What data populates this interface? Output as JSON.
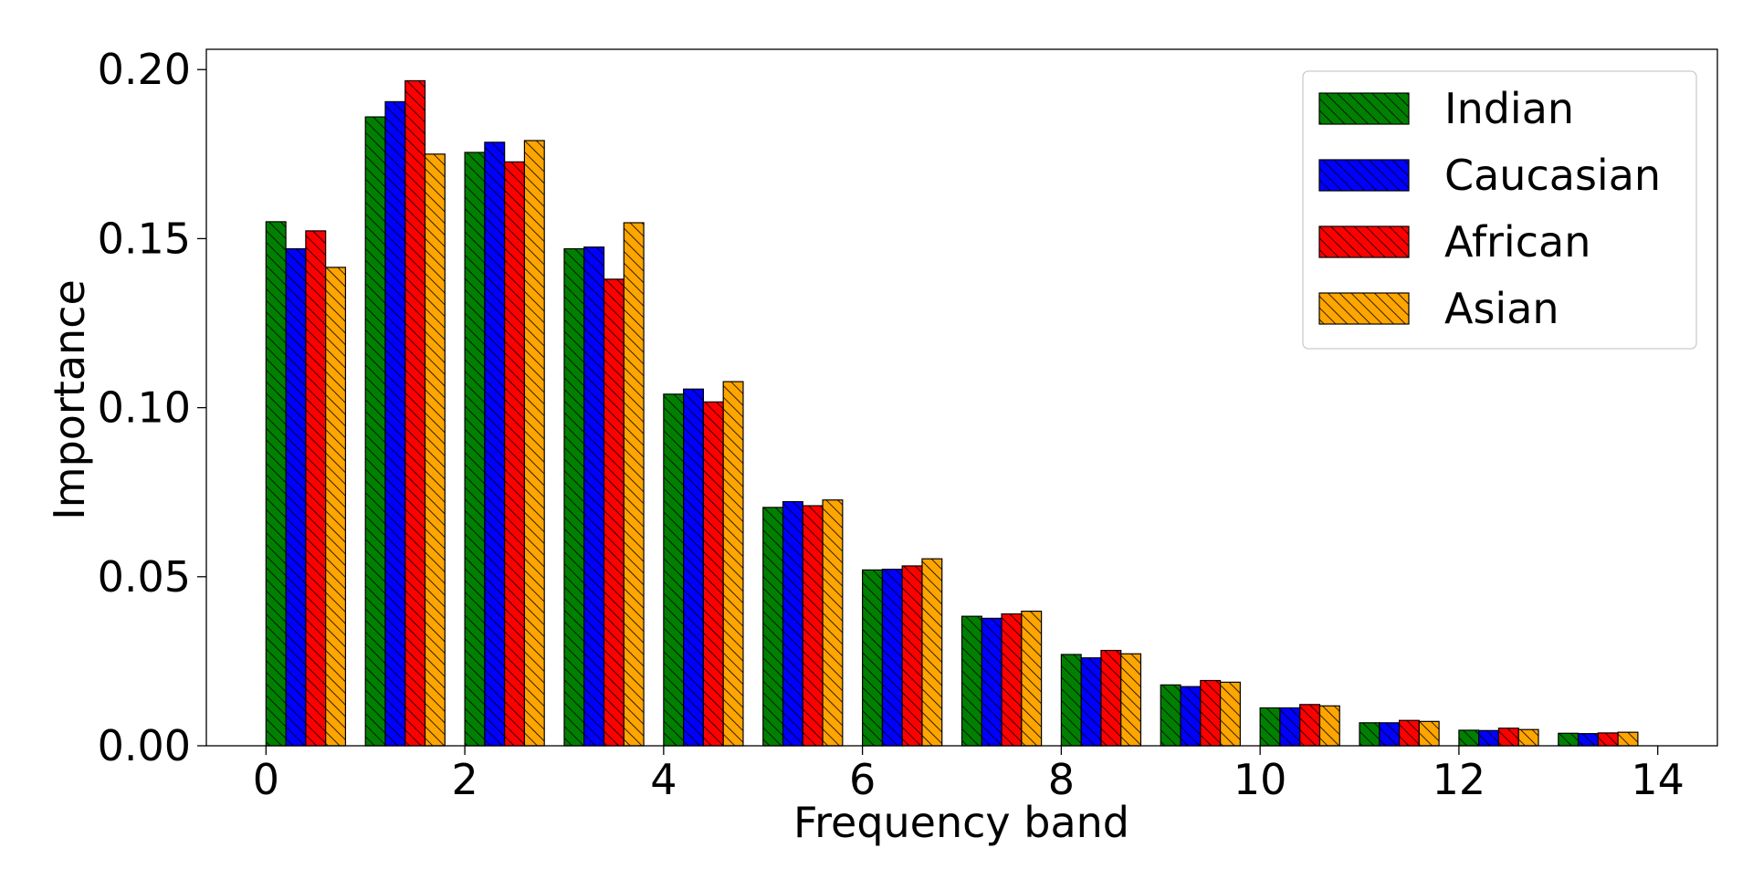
{
  "chart_data": {
    "type": "bar",
    "title": "",
    "xlabel": "Frequency band",
    "ylabel": "Importance",
    "xlim": [
      -0.6,
      14.6
    ],
    "ylim": [
      0,
      0.206
    ],
    "xticks": [
      0,
      2,
      4,
      6,
      8,
      10,
      12,
      14
    ],
    "xtick_labels": [
      "0",
      "2",
      "4",
      "6",
      "8",
      "10",
      "12",
      "14"
    ],
    "yticks": [
      0,
      0.05,
      0.1,
      0.15,
      0.2
    ],
    "ytick_labels": [
      "0.00",
      "0.05",
      "0.10",
      "0.15",
      "0.20"
    ],
    "grid": false,
    "legend_position": "top-right",
    "hatch": "diagonal",
    "bands": [
      0,
      1,
      2,
      3,
      4,
      5,
      6,
      7,
      8,
      9,
      10,
      11,
      12,
      13
    ],
    "series": [
      {
        "name": "Indian",
        "color": "#008000",
        "values": [
          0.155,
          0.186,
          0.1755,
          0.147,
          0.104,
          0.0705,
          0.052,
          0.0383,
          0.027,
          0.018,
          0.0112,
          0.0068,
          0.0046,
          0.0037
        ]
      },
      {
        "name": "Caucasian",
        "color": "#0000ff",
        "values": [
          0.147,
          0.1905,
          0.1785,
          0.1475,
          0.1055,
          0.0722,
          0.0522,
          0.0377,
          0.026,
          0.0175,
          0.0112,
          0.0068,
          0.0045,
          0.0036
        ]
      },
      {
        "name": "African",
        "color": "#ff0000",
        "values": [
          0.1523,
          0.1967,
          0.1727,
          0.138,
          0.1017,
          0.071,
          0.0532,
          0.039,
          0.0282,
          0.0193,
          0.0122,
          0.0075,
          0.0052,
          0.0038
        ]
      },
      {
        "name": "Asian",
        "color": "#ffa500",
        "values": [
          0.1415,
          0.175,
          0.179,
          0.1547,
          0.1077,
          0.0727,
          0.0553,
          0.0398,
          0.0272,
          0.0188,
          0.0118,
          0.0072,
          0.0048,
          0.004
        ]
      }
    ]
  }
}
